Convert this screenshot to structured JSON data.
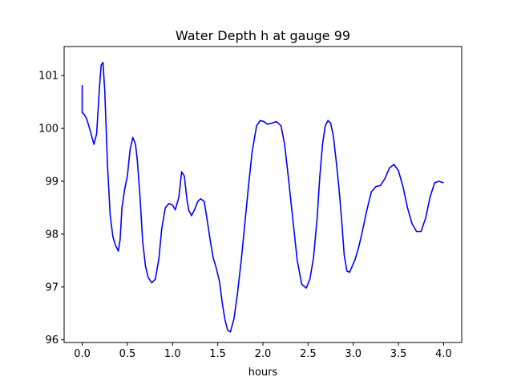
{
  "chart_data": {
    "type": "line",
    "title": "Water Depth h at gauge 99",
    "xlabel": "hours",
    "ylabel": "",
    "xlim": [
      -0.2,
      4.2
    ],
    "ylim": [
      95.95,
      101.55
    ],
    "x_ticks": [
      0.0,
      0.5,
      1.0,
      1.5,
      2.0,
      2.5,
      3.0,
      3.5,
      4.0
    ],
    "x_tick_labels": [
      "0.0",
      "0.5",
      "1.0",
      "1.5",
      "2.0",
      "2.5",
      "3.0",
      "3.5",
      "4.0"
    ],
    "y_ticks": [
      96,
      97,
      98,
      99,
      100,
      101
    ],
    "y_tick_labels": [
      "96",
      "97",
      "98",
      "99",
      "100",
      "101"
    ],
    "grid": false,
    "legend": "none",
    "series": [
      {
        "color": "#0000ff",
        "x": [
          0.0,
          0.0,
          0.02,
          0.05,
          0.09,
          0.13,
          0.16,
          0.19,
          0.21,
          0.23,
          0.25,
          0.28,
          0.31,
          0.34,
          0.37,
          0.4,
          0.42,
          0.44,
          0.47,
          0.5,
          0.53,
          0.56,
          0.59,
          0.61,
          0.64,
          0.67,
          0.7,
          0.73,
          0.77,
          0.81,
          0.85,
          0.88,
          0.92,
          0.96,
          1.0,
          1.03,
          1.07,
          1.1,
          1.13,
          1.16,
          1.18,
          1.21,
          1.24,
          1.28,
          1.31,
          1.35,
          1.38,
          1.42,
          1.45,
          1.48,
          1.52,
          1.55,
          1.58,
          1.61,
          1.64,
          1.68,
          1.72,
          1.76,
          1.8,
          1.84,
          1.88,
          1.93,
          1.97,
          2.01,
          2.05,
          2.1,
          2.15,
          2.2,
          2.24,
          2.28,
          2.33,
          2.38,
          2.43,
          2.48,
          2.52,
          2.56,
          2.6,
          2.63,
          2.66,
          2.69,
          2.72,
          2.75,
          2.78,
          2.81,
          2.84,
          2.87,
          2.9,
          2.93,
          2.96,
          2.99,
          3.02,
          3.06,
          3.1,
          3.15,
          3.2,
          3.25,
          3.3,
          3.35,
          3.4,
          3.45,
          3.5,
          3.55,
          3.6,
          3.65,
          3.7,
          3.75,
          3.8,
          3.85,
          3.9,
          3.95,
          4.0
        ],
        "y": [
          100.82,
          100.3,
          100.27,
          100.18,
          99.95,
          99.7,
          99.9,
          100.75,
          101.2,
          101.25,
          100.7,
          99.3,
          98.35,
          97.95,
          97.78,
          97.68,
          97.9,
          98.5,
          98.85,
          99.1,
          99.6,
          99.83,
          99.7,
          99.4,
          98.7,
          97.85,
          97.4,
          97.18,
          97.08,
          97.15,
          97.55,
          98.1,
          98.5,
          98.58,
          98.55,
          98.46,
          98.7,
          99.18,
          99.1,
          98.65,
          98.45,
          98.35,
          98.45,
          98.62,
          98.67,
          98.62,
          98.3,
          97.85,
          97.55,
          97.38,
          97.1,
          96.7,
          96.38,
          96.18,
          96.15,
          96.4,
          96.9,
          97.5,
          98.2,
          98.9,
          99.55,
          100.05,
          100.15,
          100.13,
          100.08,
          100.1,
          100.13,
          100.05,
          99.7,
          99.1,
          98.3,
          97.5,
          97.05,
          96.98,
          97.15,
          97.55,
          98.3,
          99.1,
          99.7,
          100.05,
          100.15,
          100.1,
          99.85,
          99.4,
          98.9,
          98.3,
          97.6,
          97.3,
          97.28,
          97.4,
          97.52,
          97.75,
          98.05,
          98.45,
          98.8,
          98.9,
          98.92,
          99.05,
          99.25,
          99.32,
          99.2,
          98.9,
          98.5,
          98.2,
          98.05,
          98.05,
          98.3,
          98.7,
          98.97,
          99.0,
          98.97
        ]
      }
    ]
  }
}
